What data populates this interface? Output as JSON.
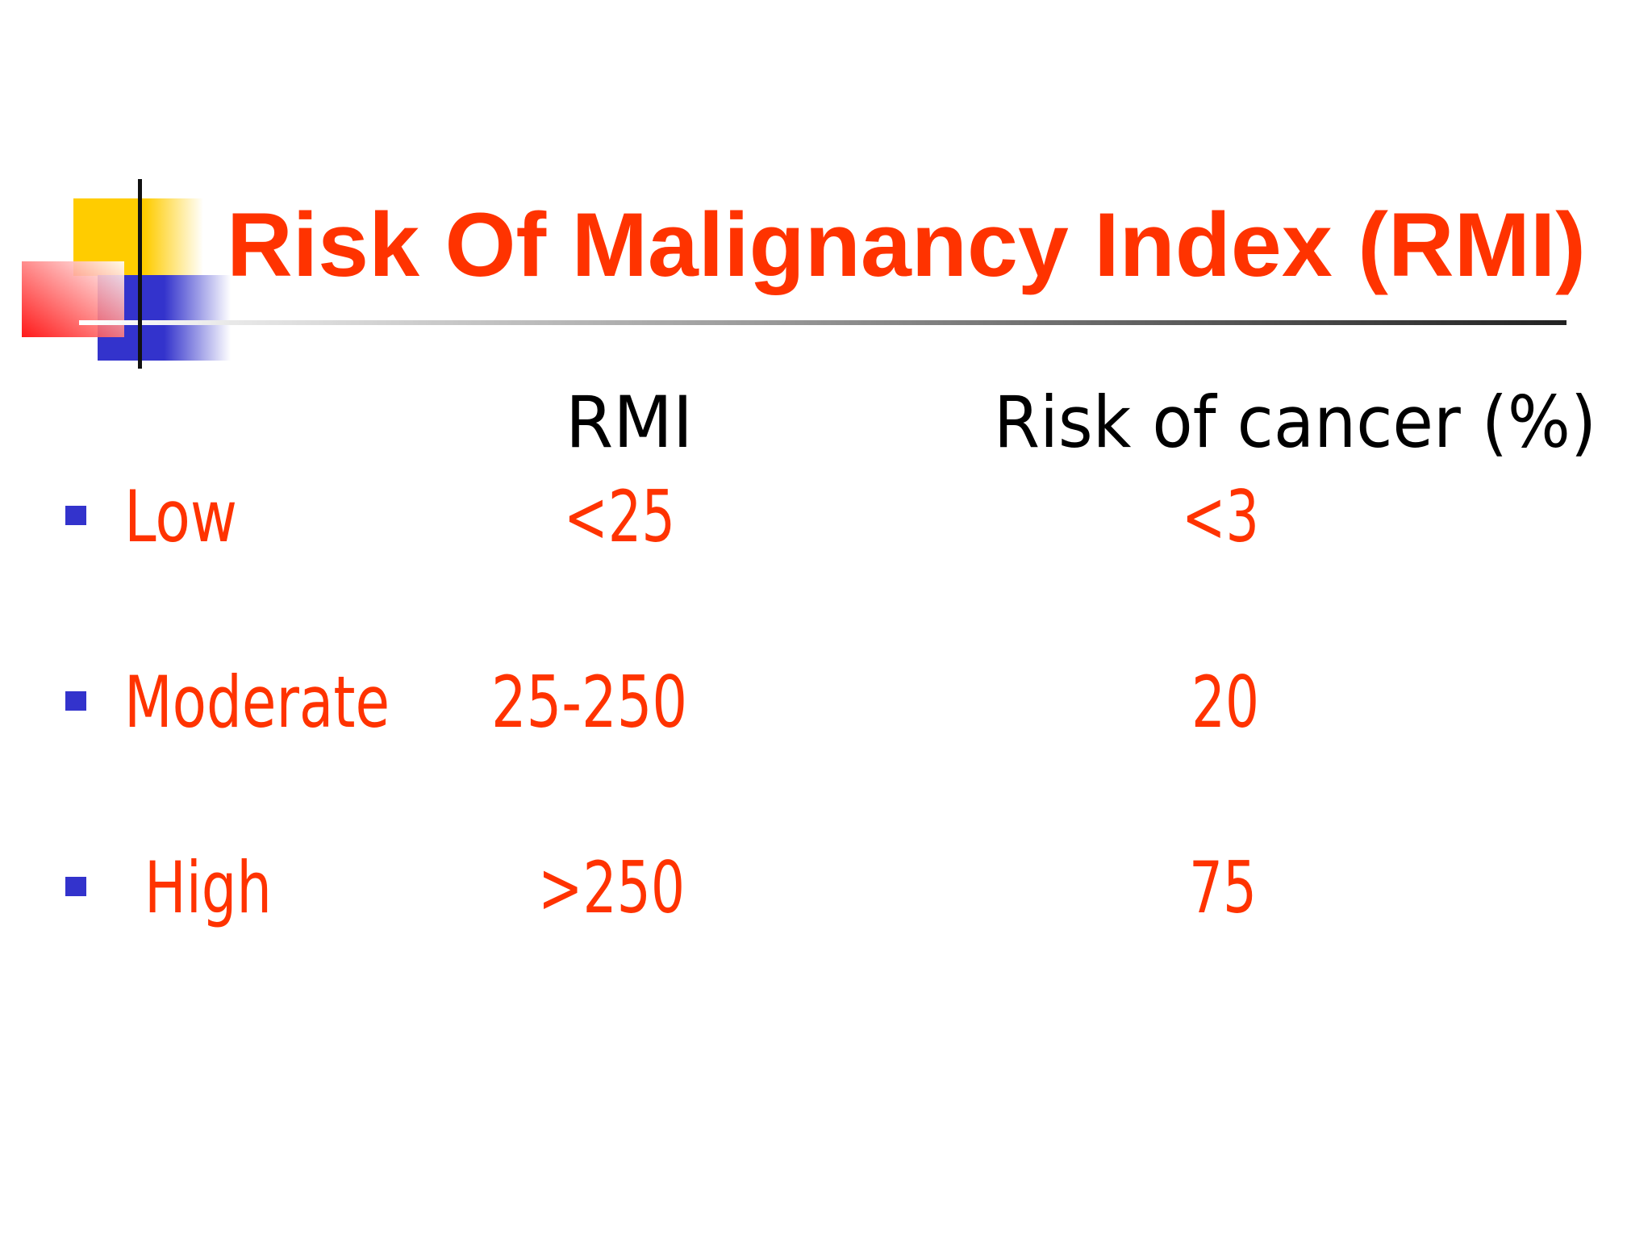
{
  "title": "Risk Of Malignancy Index (RMI)",
  "table": {
    "headers": [
      "RMI",
      "Risk of cancer (%)"
    ],
    "rows": [
      [
        "Low",
        "<25",
        "<3"
      ],
      [
        "Moderate",
        "25-250",
        "20"
      ],
      [
        "High",
        ">250",
        "75"
      ]
    ]
  }
}
